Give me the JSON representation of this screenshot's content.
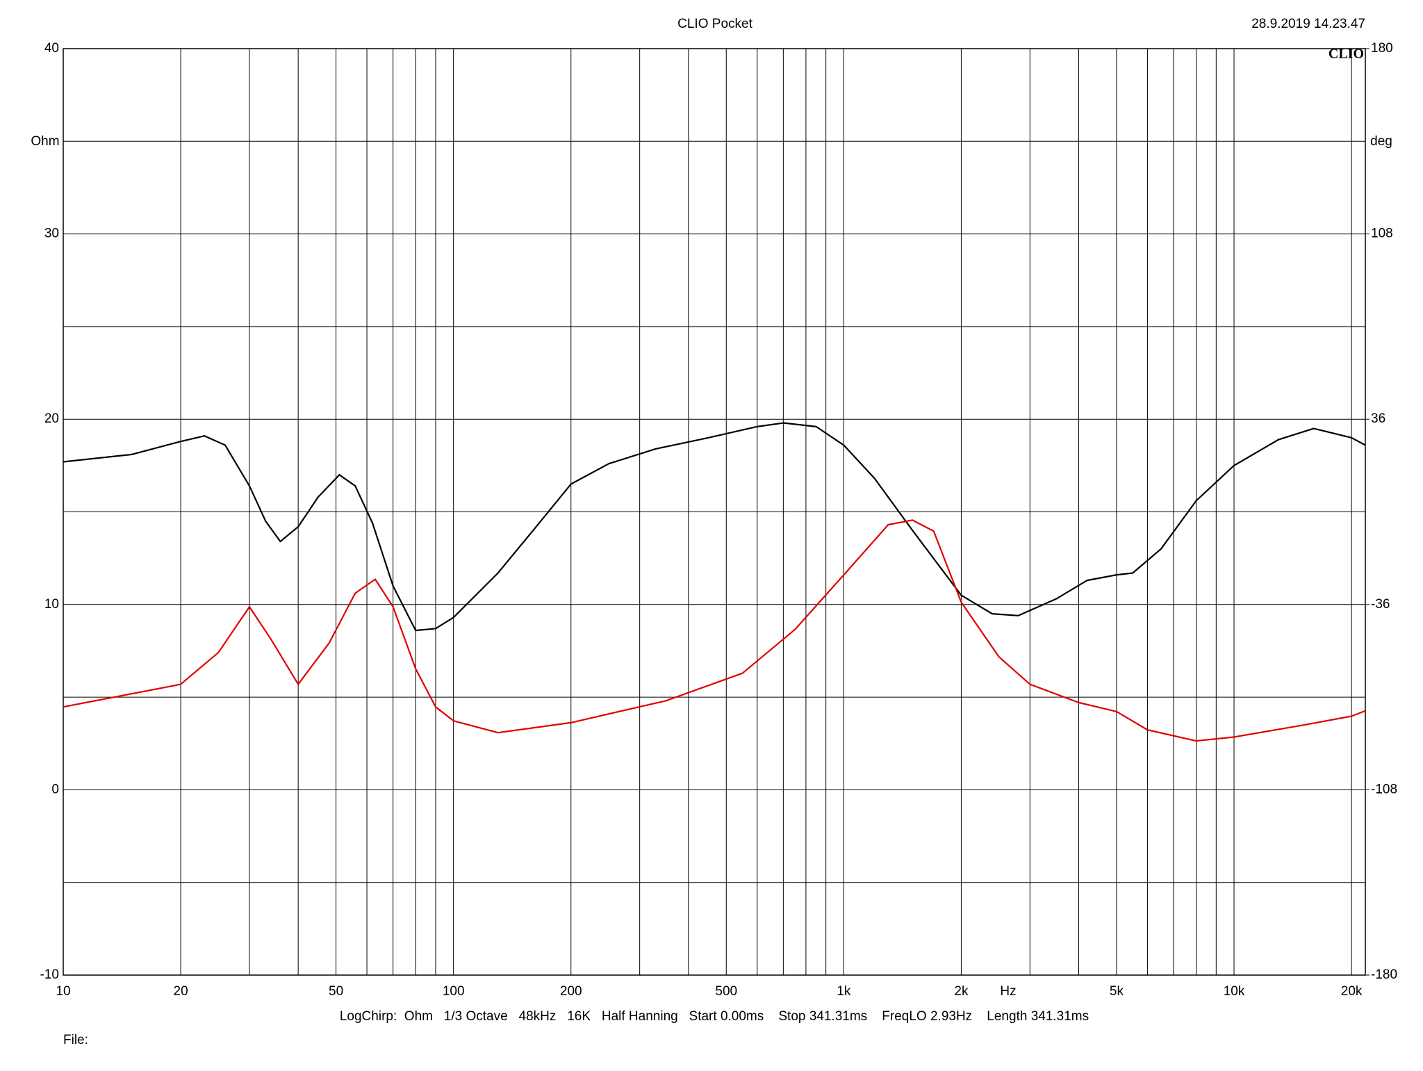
{
  "chart_data": {
    "type": "line",
    "title": "CLIO Pocket",
    "timestamp": "28.9.2019 14.23.47",
    "logo": "CLIO",
    "ylabel": "Ohm",
    "y2label": "deg",
    "xlabel": "Hz",
    "info": "LogChirp:  Ohm   1/3 Octave   48kHz   16K   Half Hanning   Start 0.00ms    Stop 341.31ms    FreqLO 2.93Hz    Length 341.31ms",
    "file_label": "File:",
    "xscale": "log",
    "grid": true,
    "xlim": [
      10,
      21700
    ],
    "ylim": [
      -10,
      40
    ],
    "y2lim": [
      -180,
      180
    ],
    "xticks": [
      10,
      20,
      50,
      100,
      200,
      500,
      {
        "value": 1000,
        "label": "1k"
      },
      {
        "value": 2000,
        "label": "2k"
      },
      {
        "value": 5000,
        "label": "5k"
      },
      {
        "value": 10000,
        "label": "10k"
      },
      {
        "value": 20000,
        "label": "20k"
      }
    ],
    "xgrid": [
      30,
      40,
      60,
      70,
      80,
      90,
      300,
      400,
      600,
      700,
      800,
      900,
      3000,
      4000,
      6000,
      7000,
      8000,
      9000
    ],
    "yticks": [
      -10,
      0,
      10,
      20,
      30,
      40
    ],
    "ygrid": [
      -5,
      5,
      15,
      25,
      35
    ],
    "y2ticks": [
      -180,
      -108,
      -36,
      36,
      108,
      180
    ],
    "series": [
      {
        "color": "#000000",
        "axis": "y",
        "x": [
          10,
          15,
          20,
          23,
          26,
          30,
          33,
          36,
          40,
          45,
          51,
          56,
          62,
          70,
          80,
          90,
          100,
          130,
          160,
          200,
          250,
          330,
          450,
          600,
          700,
          850,
          1000,
          1200,
          1500,
          2000,
          2400,
          2800,
          3500,
          4200,
          5000,
          5500,
          6500,
          8000,
          10000,
          13000,
          16000,
          20000,
          21700
        ],
        "values": [
          17.7,
          18.1,
          18.8,
          19.1,
          18.6,
          16.4,
          14.5,
          13.4,
          14.2,
          15.8,
          17.0,
          16.4,
          14.4,
          11.0,
          8.6,
          8.7,
          9.3,
          11.7,
          14.0,
          16.5,
          17.6,
          18.4,
          19.0,
          19.6,
          19.8,
          19.6,
          18.6,
          16.8,
          14.0,
          10.5,
          9.5,
          9.4,
          10.3,
          11.3,
          11.6,
          11.7,
          13.0,
          15.6,
          17.5,
          18.9,
          19.5,
          19.0,
          18.6
        ]
      },
      {
        "color": "#e00000",
        "axis": "y2",
        "x": [
          10,
          20,
          25,
          30,
          34,
          40,
          48,
          56,
          63,
          70,
          80,
          90,
          100,
          130,
          200,
          350,
          550,
          750,
          1000,
          1300,
          1500,
          1700,
          2000,
          2500,
          3000,
          4000,
          5000,
          6000,
          8000,
          10000,
          15000,
          20000,
          21700
        ],
        "values": [
          -75.8,
          -67,
          -54.6,
          -36.9,
          -49.3,
          -67,
          -51,
          -31.6,
          -26.2,
          -36.9,
          -61,
          -75.8,
          -81.2,
          -85.8,
          -81.9,
          -73.4,
          -62.7,
          -45.7,
          -24.5,
          -5,
          -3.2,
          -7.5,
          -35.1,
          -56.4,
          -67,
          -74.1,
          -77.6,
          -84.7,
          -89,
          -87.5,
          -82.9,
          -79.4,
          -77.3
        ]
      }
    ]
  }
}
